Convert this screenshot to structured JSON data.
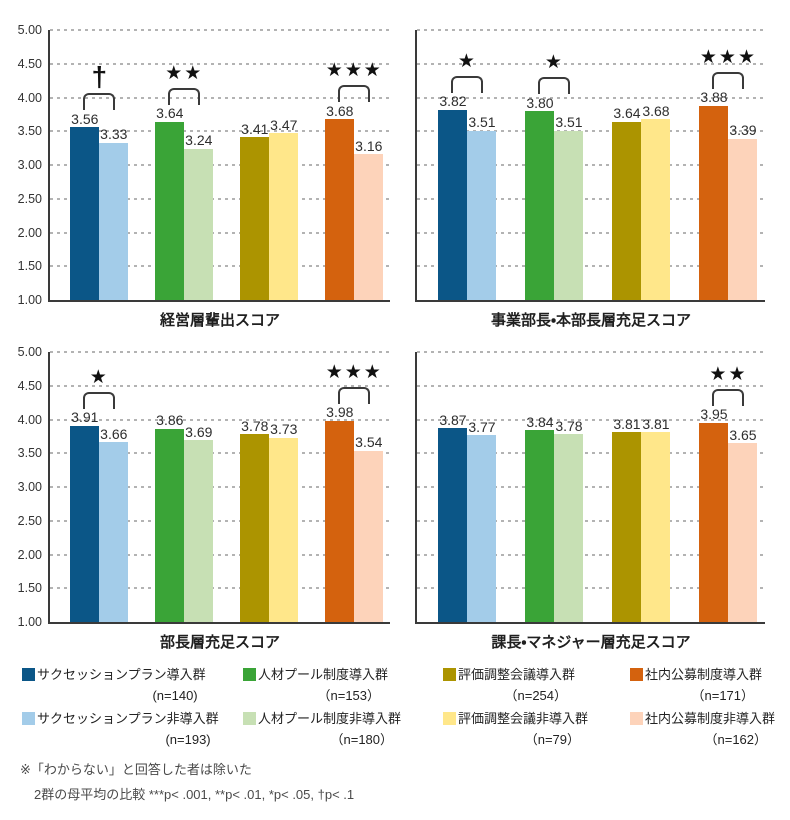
{
  "figure": {
    "y_axis": {
      "min": 1.0,
      "max": 5.0,
      "step": 0.5,
      "tick_labels": [
        "5.00",
        "4.50",
        "4.00",
        "3.50",
        "3.00",
        "2.50",
        "2.00",
        "1.50",
        "1.00"
      ]
    },
    "colors": {
      "series_pairs": [
        {
          "adopted": "#0b5687",
          "not_adopted": "#a3cce9"
        },
        {
          "adopted": "#3aa437",
          "not_adopted": "#c7e0b4"
        },
        {
          "adopted": "#ac9400",
          "not_adopted": "#ffe78a"
        },
        {
          "adopted": "#d4620e",
          "not_adopted": "#fdd3ba"
        }
      ],
      "axis": "#3a3a3a",
      "gridline": "#b3b3b3",
      "significance": "#111111"
    }
  },
  "chart_data": [
    {
      "type": "bar",
      "title": "経営層輩出スコア",
      "ylim": [
        1.0,
        5.0
      ],
      "grid": "dashed-horizontal",
      "show_y_tick_labels": true,
      "categories": [
        "サクセッションプラン",
        "人材プール制度",
        "評価調整会議",
        "社内公募制度"
      ],
      "series": [
        {
          "name": "導入群",
          "values": [
            3.56,
            3.64,
            3.41,
            3.68
          ]
        },
        {
          "name": "非導入群",
          "values": [
            3.33,
            3.24,
            3.47,
            3.16
          ]
        }
      ],
      "significance": [
        "†",
        "**",
        null,
        "***"
      ]
    },
    {
      "type": "bar",
      "title": "事業部長・本部長層充足スコア",
      "ylim": [
        1.0,
        5.0
      ],
      "grid": "dashed-horizontal",
      "show_y_tick_labels": false,
      "categories": [
        "サクセッションプラン",
        "人材プール制度",
        "評価調整会議",
        "社内公募制度"
      ],
      "series": [
        {
          "name": "導入群",
          "values": [
            3.82,
            3.8,
            3.64,
            3.88
          ]
        },
        {
          "name": "非導入群",
          "values": [
            3.51,
            3.51,
            3.68,
            3.39
          ]
        }
      ],
      "significance": [
        "*",
        "*",
        null,
        "***"
      ]
    },
    {
      "type": "bar",
      "title": "部長層充足スコア",
      "ylim": [
        1.0,
        5.0
      ],
      "grid": "dashed-horizontal",
      "show_y_tick_labels": true,
      "categories": [
        "サクセッションプラン",
        "人材プール制度",
        "評価調整会議",
        "社内公募制度"
      ],
      "series": [
        {
          "name": "導入群",
          "values": [
            3.91,
            3.86,
            3.78,
            3.98
          ]
        },
        {
          "name": "非導入群",
          "values": [
            3.66,
            3.69,
            3.73,
            3.54
          ]
        }
      ],
      "significance": [
        "*",
        null,
        null,
        "***"
      ]
    },
    {
      "type": "bar",
      "title": "課長・マネジャー層充足スコア",
      "ylim": [
        1.0,
        5.0
      ],
      "grid": "dashed-horizontal",
      "show_y_tick_labels": false,
      "categories": [
        "サクセッションプラン",
        "人材プール制度",
        "評価調整会議",
        "社内公募制度"
      ],
      "series": [
        {
          "name": "導入群",
          "values": [
            3.87,
            3.84,
            3.81,
            3.95
          ]
        },
        {
          "name": "非導入群",
          "values": [
            3.77,
            3.78,
            3.81,
            3.65
          ]
        }
      ],
      "significance": [
        null,
        null,
        null,
        "**"
      ]
    }
  ],
  "legend": {
    "rows": [
      [
        {
          "label": "サクセッションプラン導入群",
          "n": "(n=140)",
          "color": "#0b5687"
        },
        {
          "label": "人材プール制度導入群",
          "n": "（n=153）",
          "color": "#3aa437"
        },
        {
          "label": "評価調整会議導入群",
          "n": "（n=254）",
          "color": "#ac9400"
        },
        {
          "label": "社内公募制度導入群",
          "n": "（n=171）",
          "color": "#d4620e"
        }
      ],
      [
        {
          "label": "サクセッションプラン非導入群",
          "n": "(n=193)",
          "color": "#a3cce9"
        },
        {
          "label": "人材プール制度非導入群",
          "n": "（n=180）",
          "color": "#c7e0b4"
        },
        {
          "label": "評価調整会議非導入群",
          "n": "（n=79）",
          "color": "#ffe78a"
        },
        {
          "label": "社内公募制度非導入群",
          "n": "（n=162）",
          "color": "#fdd3ba"
        }
      ]
    ]
  },
  "footnote": {
    "line1": "※「わからない」と回答した者は除いた",
    "line2": "2群の母平均の比較  ***p< .001,  **p< .01,  *p< .05,  †p< .1"
  }
}
